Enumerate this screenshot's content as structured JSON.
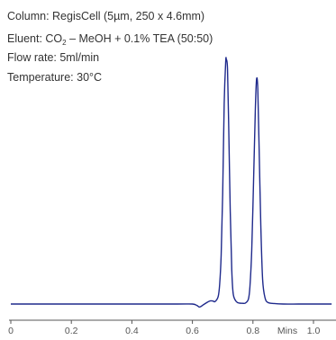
{
  "chart_data": {
    "type": "line",
    "annotations": {
      "column": "Column: RegisCell (5µm, 250 x 4.6mm)",
      "eluent_prefix": "Eluent: CO",
      "eluent_subscript": "2",
      "eluent_suffix": " – MeOH + 0.1% TEA (50:50)",
      "flow_rate": "Flow rate: 5ml/min",
      "temperature": "Temperature: 30°C"
    },
    "x_axis": {
      "label": "Mins",
      "range": [
        0,
        1.06
      ],
      "ticks": [
        0,
        0.2,
        0.4,
        0.6,
        0.8,
        1.0
      ],
      "tick_labels": [
        "0",
        "0.2",
        "0.4",
        "0.6",
        "0.8",
        "1.0"
      ]
    },
    "y_axis": {
      "range": [
        0,
        1
      ],
      "visible": false
    },
    "series": [
      {
        "color": "#1f2a8c",
        "x": [
          0.0,
          0.2,
          0.4,
          0.55,
          0.6,
          0.615,
          0.622,
          0.628,
          0.635,
          0.64,
          0.65,
          0.66,
          0.668,
          0.675,
          0.685,
          0.69,
          0.695,
          0.7,
          0.705,
          0.71,
          0.712,
          0.716,
          0.72,
          0.725,
          0.73,
          0.735,
          0.745,
          0.755,
          0.765,
          0.775,
          0.785,
          0.79,
          0.796,
          0.802,
          0.808,
          0.812,
          0.816,
          0.82,
          0.826,
          0.832,
          0.84,
          0.85,
          0.87,
          0.9,
          0.95,
          1.0,
          1.06
        ],
        "y": [
          0.0,
          0.0,
          0.0,
          0.0,
          0.0,
          -0.006,
          -0.012,
          -0.01,
          -0.004,
          0.0,
          0.008,
          0.013,
          0.012,
          0.01,
          0.03,
          0.08,
          0.2,
          0.45,
          0.82,
          0.99,
          1.0,
          0.96,
          0.72,
          0.38,
          0.14,
          0.04,
          0.01,
          0.004,
          0.003,
          0.004,
          0.02,
          0.07,
          0.22,
          0.5,
          0.8,
          0.92,
          0.88,
          0.66,
          0.32,
          0.1,
          0.025,
          0.006,
          0.002,
          0.0,
          0.0,
          0.0,
          0.0
        ]
      }
    ]
  }
}
